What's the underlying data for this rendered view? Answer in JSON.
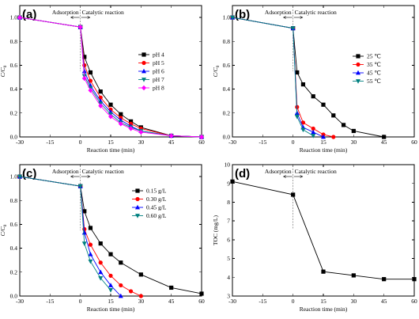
{
  "chart_data": [
    {
      "type": "line",
      "panel_label": "(a)",
      "xlabel": "Reaction time (min)",
      "ylabel": "C/C0",
      "ylabel_main": "C/C",
      "ylabel_sub": "0",
      "xlim": [
        -30,
        60
      ],
      "ylim": [
        0,
        1.1
      ],
      "xticks": [
        -30,
        -15,
        0,
        15,
        30,
        45,
        60
      ],
      "yticks": [
        0.0,
        0.2,
        0.4,
        0.6,
        0.8,
        1.0
      ],
      "annotation_left": "Adsorption",
      "annotation_right": "Catalytic reaction",
      "legend_position": "right",
      "series": [
        {
          "name": "pH 4",
          "color": "#000000",
          "marker": "square",
          "x": [
            -30,
            0,
            2,
            5,
            10,
            15,
            20,
            25,
            30,
            45,
            60
          ],
          "y": [
            1.0,
            0.92,
            0.67,
            0.54,
            0.38,
            0.27,
            0.19,
            0.13,
            0.08,
            0.01,
            0.0
          ]
        },
        {
          "name": "pH 5",
          "color": "#ff0000",
          "marker": "circle",
          "x": [
            -30,
            0,
            2,
            5,
            10,
            15,
            20,
            25,
            30,
            45,
            60
          ],
          "y": [
            1.0,
            0.92,
            0.6,
            0.47,
            0.33,
            0.23,
            0.16,
            0.11,
            0.07,
            0.01,
            0.0
          ]
        },
        {
          "name": "pH 6",
          "color": "#0000ff",
          "marker": "triangle-up",
          "x": [
            -30,
            0,
            2,
            5,
            10,
            15,
            20,
            25,
            30,
            45,
            60
          ],
          "y": [
            1.0,
            0.92,
            0.55,
            0.43,
            0.3,
            0.21,
            0.14,
            0.09,
            0.05,
            0.01,
            0.0
          ]
        },
        {
          "name": "pH 7",
          "color": "#008080",
          "marker": "triangle-down",
          "x": [
            -30,
            0,
            2,
            5,
            10,
            15,
            20,
            25,
            30,
            45,
            60
          ],
          "y": [
            1.0,
            0.92,
            0.51,
            0.41,
            0.28,
            0.19,
            0.12,
            0.08,
            0.05,
            0.01,
            0.0
          ]
        },
        {
          "name": "pH 8",
          "color": "#ff00ff",
          "marker": "diamond",
          "x": [
            -30,
            0,
            2,
            5,
            10,
            15,
            20,
            25,
            30,
            45,
            60
          ],
          "y": [
            1.0,
            0.92,
            0.49,
            0.39,
            0.26,
            0.17,
            0.11,
            0.07,
            0.04,
            0.01,
            0.0
          ]
        }
      ]
    },
    {
      "type": "line",
      "panel_label": "(b)",
      "xlabel": "Reaction time (min)",
      "ylabel": "C/C0",
      "ylabel_main": "C/C",
      "ylabel_sub": "0",
      "xlim": [
        -30,
        60
      ],
      "ylim": [
        0,
        1.1
      ],
      "xticks": [
        -30,
        -15,
        0,
        15,
        30,
        45,
        60
      ],
      "yticks": [
        0.0,
        0.2,
        0.4,
        0.6,
        0.8,
        1.0
      ],
      "annotation_left": "Adsorption",
      "annotation_right": "Catalytic reaction",
      "legend_position": "right",
      "series": [
        {
          "name": "25 ℃",
          "color": "#000000",
          "marker": "square",
          "x": [
            -30,
            0,
            2,
            5,
            10,
            15,
            20,
            25,
            30,
            45
          ],
          "y": [
            1.0,
            0.91,
            0.54,
            0.44,
            0.34,
            0.27,
            0.18,
            0.1,
            0.05,
            0.0
          ]
        },
        {
          "name": "35 ℃",
          "color": "#ff0000",
          "marker": "circle",
          "x": [
            -30,
            0,
            2,
            5,
            10,
            15,
            20
          ],
          "y": [
            1.0,
            0.91,
            0.25,
            0.12,
            0.07,
            0.02,
            0.0
          ]
        },
        {
          "name": "45 ℃",
          "color": "#0000ff",
          "marker": "triangle-up",
          "x": [
            -30,
            0,
            2,
            5,
            10,
            15
          ],
          "y": [
            1.0,
            0.91,
            0.2,
            0.08,
            0.04,
            0.0
          ]
        },
        {
          "name": "55 ℃",
          "color": "#008080",
          "marker": "triangle-down",
          "x": [
            -30,
            0,
            2,
            5,
            10
          ],
          "y": [
            1.0,
            0.91,
            0.17,
            0.06,
            0.01
          ]
        }
      ]
    },
    {
      "type": "line",
      "panel_label": "(c)",
      "xlabel": "Reaction time (min)",
      "ylabel": "C/C0",
      "ylabel_main": "C/C",
      "ylabel_sub": "0",
      "xlim": [
        -30,
        60
      ],
      "ylim": [
        0,
        1.1
      ],
      "xticks": [
        -30,
        -15,
        0,
        15,
        30,
        45,
        60
      ],
      "yticks": [
        0.0,
        0.2,
        0.4,
        0.6,
        0.8,
        1.0
      ],
      "annotation_left": "Adsorption",
      "annotation_right": "Catalytic reaction",
      "legend_position": "right",
      "series": [
        {
          "name": "0.15 g/L",
          "color": "#000000",
          "marker": "square",
          "x": [
            -30,
            0,
            2,
            5,
            10,
            15,
            20,
            30,
            45,
            60
          ],
          "y": [
            1.0,
            0.92,
            0.71,
            0.57,
            0.44,
            0.35,
            0.28,
            0.18,
            0.07,
            0.02
          ]
        },
        {
          "name": "0.30 g/L",
          "color": "#ff0000",
          "marker": "circle",
          "x": [
            -30,
            0,
            2,
            5,
            10,
            15,
            20,
            25,
            30
          ],
          "y": [
            1.0,
            0.92,
            0.56,
            0.43,
            0.28,
            0.17,
            0.09,
            0.04,
            0.0
          ]
        },
        {
          "name": "0.45 g/L",
          "color": "#0000ff",
          "marker": "triangle-up",
          "x": [
            -30,
            0,
            2,
            5,
            10,
            15,
            20
          ],
          "y": [
            1.0,
            0.92,
            0.53,
            0.35,
            0.2,
            0.09,
            0.0
          ]
        },
        {
          "name": "0.60 g/L",
          "color": "#008080",
          "marker": "triangle-down",
          "x": [
            -30,
            0,
            2,
            5,
            10,
            15
          ],
          "y": [
            1.0,
            0.92,
            0.44,
            0.29,
            0.15,
            0.05
          ]
        }
      ]
    },
    {
      "type": "line",
      "panel_label": "(d)",
      "xlabel": "Reaction time (min)",
      "ylabel": "TOC (mg/L)",
      "xlim": [
        -30,
        60
      ],
      "ylim": [
        3,
        10
      ],
      "xticks": [
        -30,
        -15,
        0,
        15,
        30,
        45,
        60
      ],
      "yticks": [
        3,
        4,
        5,
        6,
        7,
        8,
        9,
        10
      ],
      "annotation_left": "Adsorption",
      "annotation_right": "Catalytic reaction",
      "series": [
        {
          "color": "#000000",
          "marker": "square",
          "x": [
            -30,
            0,
            15,
            30,
            45,
            60
          ],
          "y": [
            9.1,
            8.4,
            4.3,
            4.1,
            3.9,
            3.9
          ]
        }
      ]
    }
  ]
}
